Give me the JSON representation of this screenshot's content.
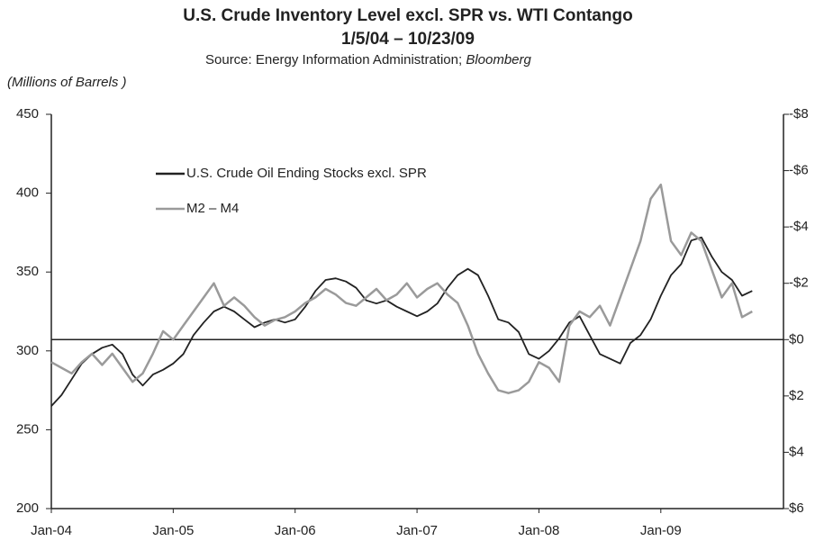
{
  "chart_data": {
    "type": "line",
    "title": "U.S. Crude Inventory Level excl. SPR vs. WTI Contango",
    "title_line2": "1/5/04 – 10/23/09",
    "subtitle": "Source:  Energy Information Administration;",
    "subtitle_italic": "Bloomberg",
    "y_label": "(Millions of Barrels )",
    "categories": [
      "Jan-04",
      null,
      null,
      null,
      null,
      null,
      null,
      null,
      null,
      null,
      null,
      null,
      "Jan-05",
      null,
      null,
      null,
      null,
      null,
      null,
      null,
      null,
      null,
      null,
      null,
      "Jan-06",
      null,
      null,
      null,
      null,
      null,
      null,
      null,
      null,
      null,
      null,
      null,
      "Jan-07",
      null,
      null,
      null,
      null,
      null,
      null,
      null,
      null,
      null,
      null,
      null,
      "Jan-08",
      null,
      null,
      null,
      null,
      null,
      null,
      null,
      null,
      null,
      null,
      null,
      "Jan-09",
      null,
      null,
      null,
      null,
      null,
      null,
      null,
      null,
      null,
      null,
      null
    ],
    "series": [
      {
        "name": "U.S. Crude Oil Ending Stocks excl. SPR",
        "color": "#222222",
        "axis": "y",
        "values": [
          265,
          272,
          282,
          292,
          298,
          302,
          304,
          298,
          285,
          278,
          285,
          288,
          292,
          298,
          310,
          318,
          325,
          328,
          325,
          320,
          315,
          318,
          320,
          318,
          320,
          328,
          338,
          345,
          346,
          344,
          340,
          332,
          330,
          332,
          328,
          325,
          322,
          325,
          330,
          340,
          348,
          352,
          348,
          335,
          320,
          318,
          312,
          298,
          295,
          300,
          308,
          318,
          322,
          310,
          298,
          295,
          292,
          305,
          310,
          320,
          335,
          348,
          355,
          370,
          372,
          360,
          350,
          345,
          335,
          338,
          null,
          null
        ]
      },
      {
        "name": "M2 – M4",
        "color": "#9a9a9a",
        "axis": "y2",
        "values": [
          0.8,
          1.0,
          1.2,
          0.8,
          0.5,
          0.9,
          0.5,
          1.0,
          1.5,
          1.2,
          0.5,
          -0.3,
          0,
          -0.5,
          -1.0,
          -1.5,
          -2.0,
          -1.2,
          -1.5,
          -1.2,
          -0.8,
          -0.5,
          -0.7,
          -0.8,
          -1.0,
          -1.3,
          -1.5,
          -1.8,
          -1.6,
          -1.3,
          -1.2,
          -1.5,
          -1.8,
          -1.4,
          -1.6,
          -2.0,
          -1.5,
          -1.8,
          -2.0,
          -1.6,
          -1.3,
          -0.5,
          0.5,
          1.2,
          1.8,
          1.9,
          1.8,
          1.5,
          0.8,
          1.0,
          1.5,
          -0.5,
          -1.0,
          -0.8,
          -1.2,
          -0.5,
          -1.5,
          -2.5,
          -3.5,
          -5.0,
          -5.5,
          -3.5,
          -3.0,
          -3.8,
          -3.5,
          -2.5,
          -1.5,
          -2.0,
          -0.8,
          -1.0,
          null,
          null
        ]
      }
    ],
    "ylim": [
      200,
      450
    ],
    "yticks": [
      200,
      250,
      300,
      350,
      400,
      450
    ],
    "y2lim": [
      6,
      -8
    ],
    "y2ticks": [
      {
        "value": 6,
        "label": "$6"
      },
      {
        "value": 4,
        "label": "$4"
      },
      {
        "value": 2,
        "label": "$2"
      },
      {
        "value": 0,
        "label": "$0"
      },
      {
        "value": -2,
        "label": "-$2"
      },
      {
        "value": -4,
        "label": "-$4"
      },
      {
        "value": -6,
        "label": "-$6"
      },
      {
        "value": -8,
        "label": "-$8"
      }
    ],
    "grid": false
  }
}
